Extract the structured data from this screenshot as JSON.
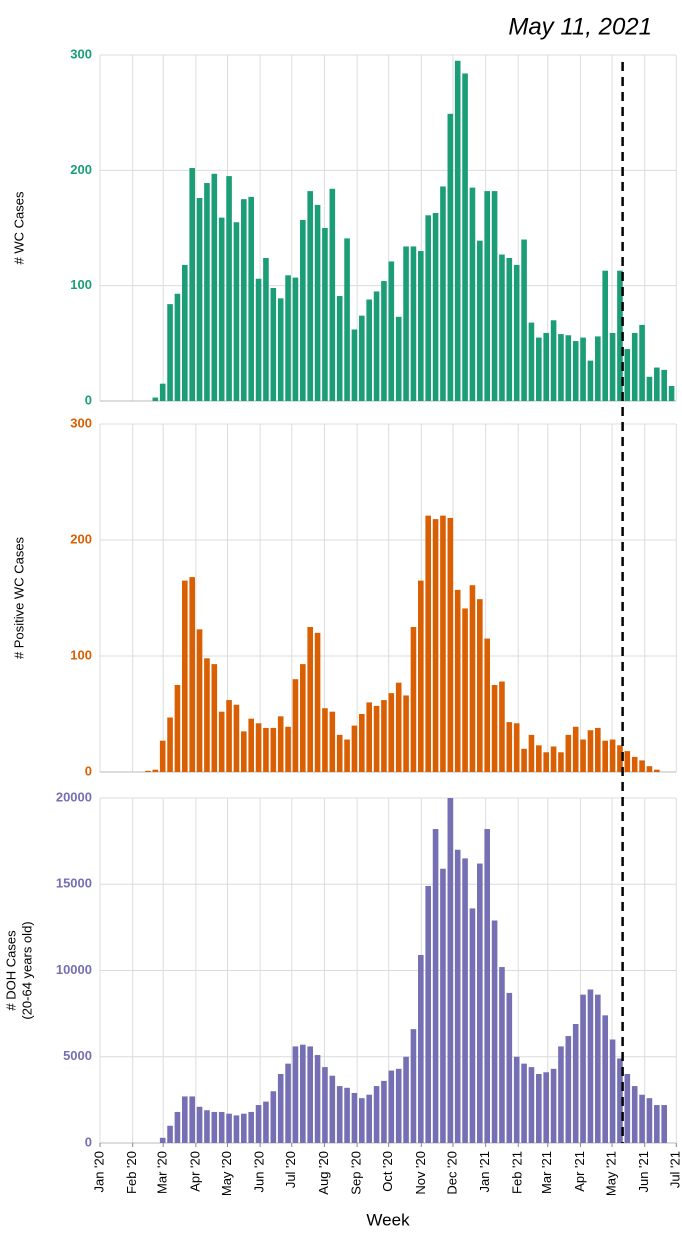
{
  "chart_data": [
    {
      "type": "bar",
      "ylabel": [
        "# WC Cases"
      ],
      "color": "#1b9e77",
      "grid": true,
      "annotation": {
        "text": "May 11, 2021",
        "x": 70.86
      },
      "categories": [
        null,
        null,
        null,
        null,
        null,
        null,
        null,
        null,
        null,
        null,
        null,
        null,
        null,
        null,
        null,
        null,
        null,
        null,
        null,
        null,
        null,
        null,
        null,
        null,
        null,
        null,
        null,
        null,
        null,
        null,
        null,
        null,
        null,
        null,
        null,
        null,
        null,
        null,
        null,
        null,
        null,
        null,
        null,
        null,
        null,
        null,
        null,
        null,
        null,
        null,
        null,
        null,
        null,
        null,
        null,
        null,
        null,
        null,
        null,
        null,
        null,
        null,
        null,
        null,
        null,
        null,
        null,
        null,
        null,
        null,
        null,
        null,
        null,
        null,
        null,
        null,
        null,
        null
      ],
      "values": [
        null,
        null,
        null,
        null,
        0,
        0,
        0,
        3,
        15,
        84,
        93,
        118,
        202,
        176,
        189,
        197,
        159,
        195,
        155,
        175,
        177,
        106,
        124,
        98,
        89,
        109,
        107,
        157,
        182,
        170,
        150,
        184,
        91,
        141,
        62,
        74,
        88,
        95,
        104,
        121,
        73,
        134,
        134,
        130,
        161,
        163,
        186,
        249,
        295,
        284,
        185,
        139,
        182,
        182,
        127,
        124,
        118,
        140,
        68,
        55,
        59,
        70,
        58,
        57,
        52,
        55,
        35,
        56,
        113,
        59,
        113,
        45,
        59,
        66,
        21,
        29,
        27,
        13
      ],
      "ylim": [
        0,
        300
      ],
      "yticks": [
        0,
        100,
        200,
        300
      ]
    },
    {
      "type": "bar",
      "ylabel": [
        "# Positive WC Cases"
      ],
      "color": "#d95f02",
      "grid": true,
      "categories": [
        null,
        null,
        null,
        null,
        null,
        null,
        null,
        null,
        null,
        null,
        null,
        null,
        null,
        null,
        null,
        null,
        null,
        null,
        null,
        null,
        null,
        null,
        null,
        null,
        null,
        null,
        null,
        null,
        null,
        null,
        null,
        null,
        null,
        null,
        null,
        null,
        null,
        null,
        null,
        null,
        null,
        null,
        null,
        null,
        null,
        null,
        null,
        null,
        null,
        null,
        null,
        null,
        null,
        null,
        null,
        null,
        null,
        null,
        null,
        null,
        null,
        null,
        null,
        null,
        null,
        null,
        null,
        null,
        null,
        null,
        null,
        null,
        null,
        null,
        null,
        null,
        null,
        null
      ],
      "values": [
        null,
        null,
        null,
        null,
        null,
        null,
        1,
        2,
        27,
        47,
        75,
        165,
        168,
        123,
        98,
        93,
        52,
        62,
        58,
        35,
        46,
        42,
        38,
        38,
        48,
        39,
        80,
        93,
        125,
        120,
        55,
        52,
        32,
        28,
        40,
        50,
        60,
        57,
        62,
        68,
        77,
        66,
        125,
        165,
        221,
        218,
        221,
        219,
        157,
        141,
        161,
        149,
        115,
        75,
        78,
        43,
        42,
        20,
        32,
        23,
        17,
        22,
        17,
        32,
        39,
        28,
        36,
        38,
        27,
        28,
        23,
        18,
        13,
        10,
        5,
        2,
        null,
        null
      ],
      "ylim": [
        0,
        300
      ],
      "yticks": [
        0,
        100,
        200,
        300
      ]
    },
    {
      "type": "bar",
      "ylabel": [
        "# DOH Cases",
        "(20-64 years old)"
      ],
      "xlabel": "Week",
      "color": "#7570b3",
      "grid": true,
      "categories": [
        null,
        null,
        null,
        null,
        null,
        null,
        null,
        null,
        null,
        null,
        null,
        null,
        null,
        null,
        null,
        null,
        null,
        null,
        null,
        null,
        null,
        null,
        null,
        null,
        null,
        null,
        null,
        null,
        null,
        null,
        null,
        null,
        null,
        null,
        null,
        null,
        null,
        null,
        null,
        null,
        null,
        null,
        null,
        null,
        null,
        null,
        null,
        null,
        null,
        null,
        null,
        null,
        null,
        null,
        null,
        null,
        null,
        null,
        null,
        null,
        null,
        null,
        null,
        null,
        null,
        null,
        null,
        null,
        null,
        null,
        null,
        null,
        null,
        null,
        null,
        null,
        null,
        null
      ],
      "values": [
        null,
        null,
        null,
        null,
        null,
        null,
        null,
        null,
        300,
        1000,
        1800,
        2700,
        2700,
        2100,
        1900,
        1800,
        1800,
        1700,
        1600,
        1700,
        1800,
        2200,
        2400,
        3000,
        4000,
        4600,
        5600,
        5700,
        5600,
        5100,
        4400,
        3900,
        3300,
        3200,
        2900,
        2600,
        2800,
        3300,
        3600,
        4200,
        4300,
        5000,
        6600,
        10900,
        14900,
        18200,
        15900,
        20000,
        17000,
        16500,
        13600,
        16200,
        18200,
        12900,
        10200,
        8700,
        5000,
        4600,
        4400,
        4000,
        4100,
        4300,
        5600,
        6200,
        6900,
        8600,
        8900,
        8600,
        7400,
        6000,
        4900,
        4000,
        3300,
        2800,
        2600,
        2200,
        2200,
        null
      ],
      "ylim": [
        0,
        20000
      ],
      "yticks": [
        0,
        5000,
        10000,
        15000,
        20000
      ],
      "xlim": [
        0,
        78.1
      ],
      "xticks": [
        {
          "value": 0,
          "label": "Jan '20"
        },
        {
          "value": 4.43,
          "label": "Feb '20"
        },
        {
          "value": 8.57,
          "label": "Mar '20"
        },
        {
          "value": 13,
          "label": "Apr '20"
        },
        {
          "value": 17.29,
          "label": "May '20"
        },
        {
          "value": 21.71,
          "label": "Jun '20"
        },
        {
          "value": 26,
          "label": "Jul '20"
        },
        {
          "value": 30.43,
          "label": "Aug '20"
        },
        {
          "value": 34.86,
          "label": "Sep '20"
        },
        {
          "value": 39.14,
          "label": "Oct '20"
        },
        {
          "value": 43.57,
          "label": "Nov '20"
        },
        {
          "value": 47.86,
          "label": "Dec '20"
        },
        {
          "value": 52.29,
          "label": "Jan '21"
        },
        {
          "value": 56.71,
          "label": "Feb '21"
        },
        {
          "value": 60.71,
          "label": "Mar '21"
        },
        {
          "value": 65.14,
          "label": "Apr '21"
        },
        {
          "value": 69.43,
          "label": "May '21"
        },
        {
          "value": 73.86,
          "label": "Jun '21"
        },
        {
          "value": 78.14,
          "label": "Jul '21"
        }
      ]
    }
  ]
}
